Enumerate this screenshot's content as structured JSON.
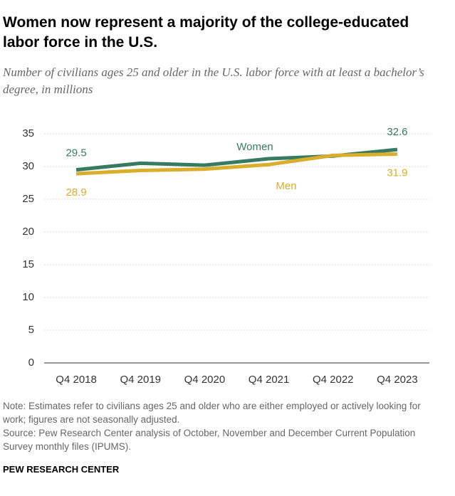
{
  "chart_data": {
    "type": "line",
    "title": "Women now represent a majority of the college-educated labor force in the U.S.",
    "subtitle": "Number of civilians ages 25 and older in the U.S. labor force with at least a bachelor’s degree, in millions",
    "categories": [
      "Q4 2018",
      "Q4 2019",
      "Q4 2020",
      "Q4 2021",
      "Q4 2022",
      "Q4 2023"
    ],
    "series": [
      {
        "name": "Women",
        "color": "#367a62",
        "values": [
          29.5,
          30.5,
          30.2,
          31.2,
          31.6,
          32.6
        ]
      },
      {
        "name": "Men",
        "color": "#d8ae2c",
        "values": [
          28.9,
          29.4,
          29.6,
          30.3,
          31.7,
          31.9
        ]
      }
    ],
    "ylim": [
      0,
      35
    ],
    "yticks": [
      0,
      5,
      10,
      15,
      20,
      25,
      30,
      35
    ],
    "grid": true,
    "note": "Note: Estimates refer to civilians ages 25 and older who are either employed or actively looking for work; figures are not seasonally adjusted.",
    "source": "Source: Pew Research Center analysis of October, November and December Current Population Survey monthly files (IPUMS).",
    "brand": "PEW RESEARCH CENTER"
  }
}
